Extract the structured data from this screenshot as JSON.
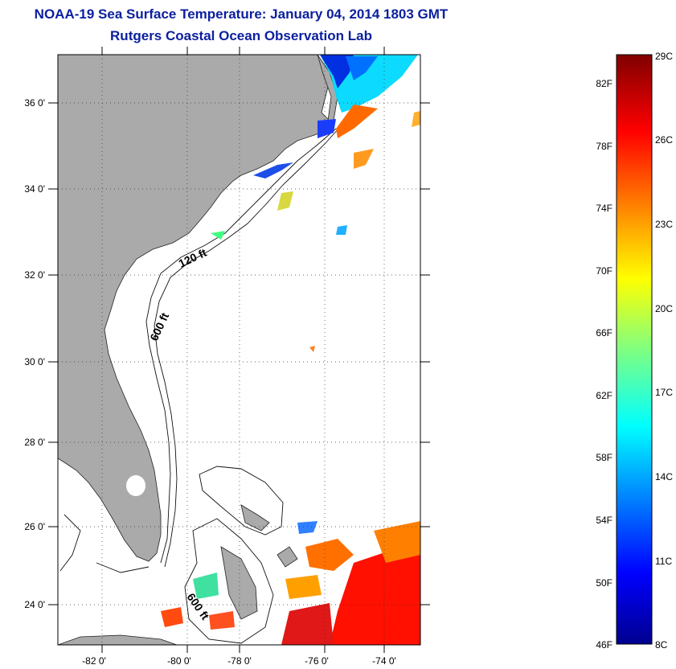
{
  "header": {
    "title": "NOAA-19 Sea Surface Temperature:  January 04, 2014 1803 GMT",
    "subtitle": "Rutgers Coastal Ocean Observation Lab"
  },
  "map": {
    "lat_labels": [
      "36 0'",
      "34 0'",
      "32 0'",
      "30 0'",
      "28 0'",
      "26 0'",
      "24 0'"
    ],
    "lon_labels": [
      "-82 0'",
      "-80 0'",
      "-78 0'",
      "-76 0'",
      "-74 0'"
    ],
    "contour_labels": [
      "120 ft",
      "600 ft",
      "600 ft"
    ],
    "colors": {
      "land": "#aaaaaa",
      "ocean": "#ffffff",
      "title": "#0b1f9e"
    }
  },
  "colorbar": {
    "fahrenheit_labels": [
      "82F",
      "78F",
      "74F",
      "70F",
      "66F",
      "62F",
      "58F",
      "54F",
      "50F",
      "46F"
    ],
    "celsius_labels": [
      "29C",
      "26C",
      "23C",
      "20C",
      "17C",
      "14C",
      "11C",
      "8C"
    ],
    "range_c": [
      8,
      29
    ]
  }
}
